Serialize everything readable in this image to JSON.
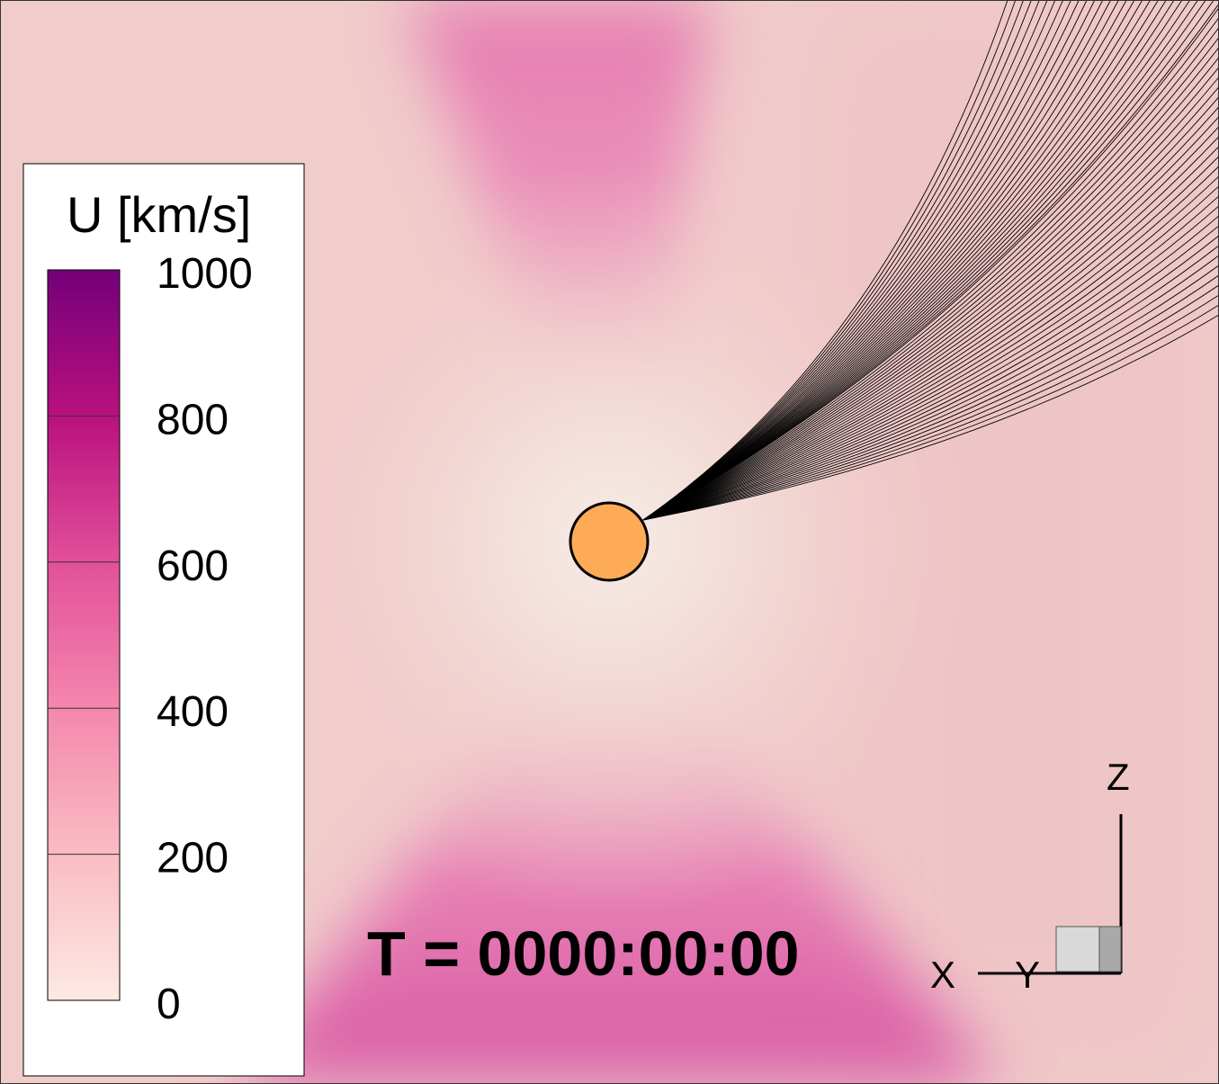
{
  "colorbar": {
    "title": "U [km/s]",
    "tick_labels": [
      "1000",
      "800",
      "600",
      "400",
      "200",
      "0"
    ],
    "range": [
      0,
      1000
    ],
    "colors": {
      "0": "#fde9e3",
      "200": "#f9bcc3",
      "400": "#f487ad",
      "600": "#e2509a",
      "800": "#b9107e",
      "1000": "#74007a"
    }
  },
  "time_label": "T = 0000:00:00",
  "axes_triad": {
    "x_label": "X",
    "y_label": "Y",
    "z_label": "Z"
  },
  "colors": {
    "background_field": "#f1cbc9",
    "sun_fill": "#fdab57",
    "field_lines": "#000000",
    "legend_box": "#ffffff"
  }
}
